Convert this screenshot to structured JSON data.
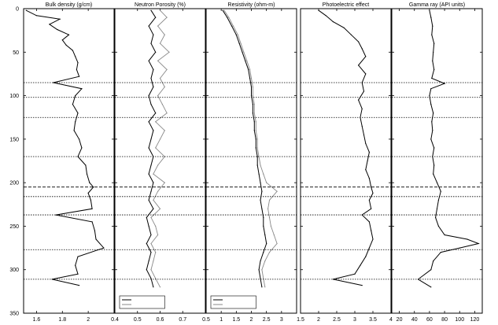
{
  "chart_data": {
    "type": "line",
    "shared_y": {
      "label": "",
      "ylim": [
        0,
        350
      ],
      "inverted": true,
      "ticks": [
        0,
        50,
        100,
        150,
        200,
        250,
        300,
        350
      ]
    },
    "boundaries": [
      {
        "depth": 85,
        "style": "dotted"
      },
      {
        "depth": 102,
        "style": "dotted"
      },
      {
        "depth": 125,
        "style": "dotted"
      },
      {
        "depth": 170,
        "style": "dotted"
      },
      {
        "depth": 205,
        "style": "dashed"
      },
      {
        "depth": 216,
        "style": "dotted"
      },
      {
        "depth": 237,
        "style": "dotted"
      },
      {
        "depth": 277,
        "style": "dotted"
      },
      {
        "depth": 311,
        "style": "dotted"
      }
    ],
    "panels": [
      {
        "title": "Bulk density (g/cm)",
        "xlim": [
          1.5,
          2.2
        ],
        "xticks": [
          "1.6",
          "1.8",
          "2"
        ],
        "xtick_values": [
          1.6,
          1.8,
          2.0
        ],
        "series": [
          {
            "color": "#000000",
            "depth": [
              2,
              8,
              12,
              18,
              24,
              30,
              36,
              42,
              48,
              55,
              62,
              70,
              78,
              85,
              92,
              100,
              110,
              120,
              130,
              140,
              150,
              160,
              170,
              180,
              190,
              200,
              205,
              212,
              220,
              230,
              237,
              245,
              255,
              265,
              275,
              285,
              295,
              305,
              311,
              318
            ],
            "values": [
              1.52,
              1.6,
              1.78,
              1.7,
              1.76,
              1.85,
              1.8,
              1.83,
              1.88,
              1.9,
              1.92,
              1.91,
              1.93,
              1.73,
              1.95,
              1.9,
              1.88,
              1.92,
              1.9,
              1.89,
              1.93,
              1.95,
              1.92,
              1.98,
              1.99,
              2.01,
              2.04,
              2.0,
              2.02,
              2.03,
              1.75,
              2.03,
              2.05,
              2.06,
              2.12,
              1.92,
              1.9,
              1.92,
              1.72,
              1.93
            ]
          }
        ]
      },
      {
        "title": "Neutron Porosity (%)",
        "xlim": [
          0.4,
          0.8
        ],
        "xticks": [
          "0.4",
          "0.5",
          "0.6",
          "0.7"
        ],
        "xtick_values": [
          0.4,
          0.5,
          0.6,
          0.7
        ],
        "legend": [
          {
            "label": "",
            "color": "#000000"
          },
          {
            "label": "",
            "color": "#888888"
          }
        ],
        "series": [
          {
            "color": "#000000",
            "depth": [
              2,
              10,
              20,
              30,
              40,
              50,
              60,
              70,
              80,
              90,
              100,
              110,
              120,
              130,
              140,
              150,
              160,
              170,
              180,
              190,
              200,
              210,
              220,
              230,
              240,
              250,
              260,
              270,
              280,
              290,
              300,
              310,
              320
            ],
            "values": [
              0.56,
              0.58,
              0.55,
              0.57,
              0.56,
              0.58,
              0.55,
              0.57,
              0.56,
              0.57,
              0.55,
              0.56,
              0.58,
              0.55,
              0.57,
              0.56,
              0.55,
              0.57,
              0.56,
              0.55,
              0.57,
              0.56,
              0.55,
              0.57,
              0.54,
              0.55,
              0.56,
              0.54,
              0.56,
              0.55,
              0.54,
              0.56,
              0.57
            ]
          },
          {
            "color": "#888888",
            "depth": [
              2,
              10,
              20,
              30,
              40,
              50,
              60,
              70,
              80,
              90,
              100,
              110,
              120,
              130,
              140,
              150,
              160,
              170,
              180,
              190,
              200,
              210,
              220,
              230,
              240,
              250,
              260,
              270,
              280,
              290,
              300,
              310,
              320
            ],
            "values": [
              0.6,
              0.63,
              0.59,
              0.62,
              0.6,
              0.64,
              0.59,
              0.63,
              0.6,
              0.62,
              0.59,
              0.61,
              0.63,
              0.58,
              0.62,
              0.6,
              0.58,
              0.62,
              0.59,
              0.57,
              0.62,
              0.59,
              0.57,
              0.6,
              0.56,
              0.58,
              0.59,
              0.56,
              0.58,
              0.57,
              0.56,
              0.58,
              0.6
            ]
          }
        ]
      },
      {
        "title": "Resistivity (ohm-m)",
        "xlim": [
          0.5,
          3.5
        ],
        "xticks": [
          "0.5",
          "1",
          "1.5",
          "2",
          "2.5",
          "3"
        ],
        "xtick_values": [
          0.5,
          1.0,
          1.5,
          2.0,
          2.5,
          3.0
        ],
        "legend": [
          {
            "label": "",
            "color": "#000000"
          },
          {
            "label": "",
            "color": "#888888"
          }
        ],
        "series": [
          {
            "color": "#000000",
            "depth": [
              2,
              10,
              20,
              30,
              40,
              50,
              60,
              70,
              80,
              90,
              100,
              110,
              120,
              130,
              140,
              150,
              160,
              170,
              180,
              190,
              200,
              210,
              220,
              230,
              240,
              250,
              260,
              270,
              280,
              290,
              300,
              310,
              320
            ],
            "values": [
              1.05,
              1.2,
              1.35,
              1.5,
              1.6,
              1.7,
              1.8,
              1.9,
              1.95,
              2.0,
              2.0,
              2.05,
              2.05,
              2.1,
              2.1,
              2.15,
              2.15,
              2.2,
              2.2,
              2.25,
              2.3,
              2.35,
              2.3,
              2.35,
              2.4,
              2.4,
              2.45,
              2.5,
              2.4,
              2.3,
              2.25,
              2.3,
              2.35
            ]
          },
          {
            "color": "#888888",
            "depth": [
              2,
              10,
              20,
              30,
              40,
              50,
              60,
              70,
              80,
              90,
              100,
              110,
              120,
              130,
              140,
              150,
              160,
              170,
              180,
              190,
              200,
              210,
              220,
              230,
              240,
              250,
              260,
              270,
              280,
              290,
              300,
              310,
              320
            ],
            "values": [
              1.1,
              1.25,
              1.4,
              1.55,
              1.65,
              1.75,
              1.85,
              1.95,
              2.0,
              2.05,
              2.05,
              2.1,
              2.1,
              2.15,
              2.15,
              2.2,
              2.2,
              2.25,
              2.3,
              2.4,
              2.5,
              2.85,
              2.6,
              2.55,
              2.6,
              2.65,
              2.75,
              2.85,
              2.6,
              2.45,
              2.35,
              2.4,
              2.45
            ]
          }
        ]
      },
      {
        "title": "Photoelectric effect",
        "xlim": [
          1.5,
          4
        ],
        "xticks": [
          "1.5",
          "2",
          "2.5",
          "3",
          "3.5",
          "4"
        ],
        "xtick_values": [
          1.5,
          2.0,
          2.5,
          3.0,
          3.5,
          4.0
        ],
        "series": [
          {
            "color": "#000000",
            "depth": [
              2,
              8,
              15,
              22,
              30,
              38,
              46,
              55,
              65,
              75,
              85,
              95,
              105,
              115,
              125,
              135,
              145,
              155,
              165,
              175,
              185,
              195,
              205,
              212,
              220,
              230,
              237,
              245,
              255,
              265,
              275,
              285,
              295,
              305,
              311,
              318
            ],
            "values": [
              2.0,
              2.2,
              2.4,
              2.7,
              2.9,
              3.1,
              3.2,
              3.3,
              3.1,
              3.3,
              3.2,
              3.25,
              3.1,
              3.2,
              3.15,
              3.2,
              3.25,
              3.3,
              3.4,
              3.35,
              3.3,
              3.4,
              3.45,
              3.5,
              3.4,
              3.45,
              3.2,
              3.4,
              3.45,
              3.5,
              3.4,
              3.3,
              3.15,
              3.0,
              2.4,
              3.2
            ]
          }
        ]
      },
      {
        "title": "Gamma ray (API units)",
        "xlim": [
          10,
          130
        ],
        "xticks": [
          "20",
          "40",
          "60",
          "80",
          "100",
          "120"
        ],
        "xtick_values": [
          20,
          40,
          60,
          80,
          100,
          120
        ],
        "series": [
          {
            "color": "#000000",
            "depth": [
              2,
              10,
              20,
              30,
              40,
              50,
              60,
              70,
              80,
              86,
              92,
              100,
              110,
              120,
              130,
              140,
              150,
              160,
              170,
              180,
              190,
              200,
              210,
              220,
              230,
              240,
              250,
              260,
              265,
              270,
              275,
              280,
              290,
              300,
              311,
              320
            ],
            "values": [
              60,
              62,
              64,
              63,
              66,
              65,
              64,
              66,
              63,
              80,
              62,
              60,
              62,
              65,
              63,
              64,
              62,
              66,
              64,
              66,
              65,
              70,
              75,
              72,
              70,
              68,
              72,
              80,
              110,
              125,
              100,
              75,
              65,
              62,
              45,
              62
            ]
          }
        ]
      }
    ]
  }
}
